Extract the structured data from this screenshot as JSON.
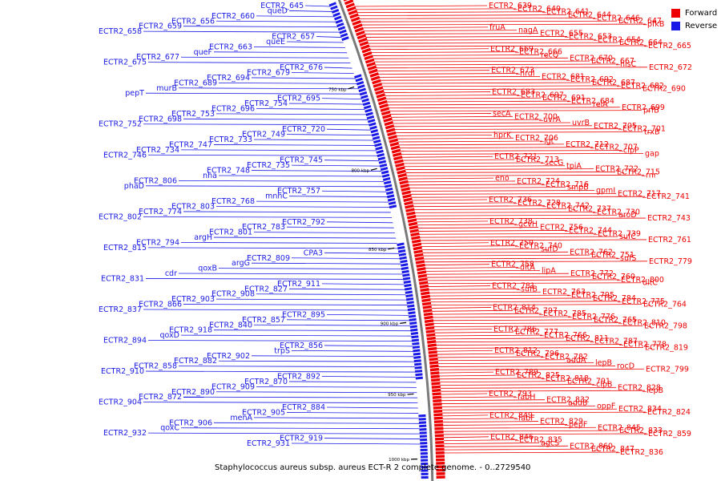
{
  "caption": "Staphylococcus aureus subsp. aureus ECT-R 2 complete genome. - 0..2729540",
  "legend": [
    {
      "label": "Forward",
      "color": "#ee0000"
    },
    {
      "label": "Reverse",
      "color": "#1a1ae6"
    }
  ],
  "colors": {
    "forward": "#ee0000",
    "reverse": "#1a1ae6",
    "backbone": "#7a7a7a"
  },
  "ticks": [
    "750 kbp",
    "800 kbp",
    "850 kbp",
    "900 kbp",
    "950 kbp",
    "1000 kbp"
  ],
  "forward_labels": [
    "ECTR2_639",
    "ECTR2_640",
    "ECTR2_641",
    "ECTR2_644",
    "ECTR2_646",
    "ECTR2_647",
    "pfkB",
    "fruA",
    "nagA",
    "ECTR2_655",
    "ECTR2_653",
    "ECTR2_654",
    "ECTR2_664",
    "ECTR2_665",
    "ECTR2_669",
    "ECTR2_666",
    "recQ",
    "ECTR2_670",
    "ECTR2_667",
    "hisC",
    "ECTR2_672",
    "ECTR2_673",
    "nrdI",
    "ECTR2_681",
    "ECTR2_692",
    "ECTR2_687",
    "ECTR2_682",
    "ECTR2_690",
    "ECTR2_683",
    "ECTR2_697",
    "ECTR2_691",
    "ECTR2_684",
    "relA",
    "ECTR2_699",
    "prfB",
    "secA",
    "ECTR2_700",
    "uvrA",
    "uvrB",
    "ECTR2_705",
    "ECTR2_701",
    "trxB",
    "hprK",
    "ECTR2_706",
    "lgt",
    "ECTR2_712",
    "ECTR2_707",
    "clpP",
    "gap",
    "ECTR2_721",
    "ECTR2_713",
    "secG",
    "tpiA",
    "ECTR2_722",
    "ECTR2_715",
    "rnr",
    "eno",
    "ECTR2_724",
    "ECTR2_716",
    "smpB",
    "gpmI",
    "ECTR2_717",
    "ECTR2_741",
    "ECTR2_736",
    "ECTR2_728",
    "ECTR2_742",
    "ECTR2_737",
    "ECTR2_730",
    "aroD",
    "ECTR2_743",
    "ECTR2_738",
    "gcvH",
    "ECTR2_756",
    "ECTR2_744",
    "ECTR2_739",
    "sufC",
    "ECTR2_761",
    "ECTR2_750",
    "ECTR2_740",
    "sufD",
    "ECTR2_762",
    "ECTR2_751",
    "sufS",
    "ECTR2_779",
    "ECTR2_758",
    "dltA",
    "lipA",
    "ECTR2_772",
    "ECTR2_760",
    "ECTR2_800",
    "dltC",
    "ECTR2_781",
    "sufB",
    "ECTR2_763",
    "ECTR2_795",
    "ECTR2_784",
    "ECTR2_775",
    "ECTR2_764",
    "ECTR2_814",
    "ECTR2_797",
    "ECTR2_785",
    "ECTR2_776",
    "ECTR2_765",
    "ECTR2_810",
    "ECTR2_798",
    "ECTR2_786",
    "ECTR2_777",
    "ECTR2_766",
    "ECTR2_811",
    "ECTR2_787",
    "ECTR2_778",
    "ECTR2_819",
    "ECTR2_812",
    "ECTR2_796",
    "ECTR2_782",
    "addA",
    "lepB",
    "rocD",
    "ECTR2_799",
    "ECTR2_789",
    "ECTR2_825",
    "ECTR2_818",
    "ECTR2_791",
    "clpB",
    "ECTR2_828",
    "lepB",
    "ECTR2_793",
    "fabH",
    "ECTR2_832",
    "addB",
    "oppF",
    "ECTR2_834",
    "ECTR2_824",
    "ECTR2_849",
    "fabF",
    "ECTR2_829",
    "pepF",
    "ECTR2_845",
    "ECTR2_833",
    "ECTR2_859",
    "ECTR2_846",
    "ECTR2_835",
    "agcS",
    "ECTR2_860",
    "ECTR2_847",
    "ECTR2_836"
  ],
  "reverse_labels": [
    "ECTR2_645",
    "queD",
    "ECTR2_660",
    "ECTR2_656",
    "ECTR2_659",
    "ECTR2_658",
    "ECTR2_657",
    "queE",
    "ECTR2_663",
    "queF",
    "ECTR2_677",
    "ECTR2_675",
    "ECTR2_676",
    "ECTR2_679",
    "ECTR2_694",
    "ECTR2_689",
    "murB",
    "pepT",
    "ECTR2_695",
    "ECTR2_754",
    "ECTR2_696",
    "ECTR2_753",
    "ECTR2_698",
    "ECTR2_752",
    "ECTR2_720",
    "ECTR2_749",
    "ECTR2_733",
    "ECTR2_747",
    "ECTR2_734",
    "ECTR2_746",
    "ECTR2_745",
    "ECTR2_735",
    "ECTR2_748",
    "nha",
    "ECTR2_806",
    "phaD",
    "ECTR2_757",
    "mnhC",
    "ECTR2_768",
    "ECTR2_803",
    "ECTR2_774",
    "ECTR2_802",
    "ECTR2_792",
    "ECTR2_783",
    "ECTR2_801",
    "argH",
    "ECTR2_794",
    "ECTR2_815",
    "CPA3",
    "ECTR2_809",
    "argG",
    "qoxB",
    "cdr",
    "ECTR2_831",
    "ECTR2_911",
    "ECTR2_827",
    "ECTR2_908",
    "ECTR2_903",
    "ECTR2_866",
    "ECTR2_837",
    "ECTR2_895",
    "ECTR2_857",
    "ECTR2_840",
    "ECTR2_918",
    "qoxD",
    "ECTR2_894",
    "ECTR2_856",
    "trpS",
    "ECTR2_902",
    "ECTR2_882",
    "ECTR2_858",
    "ECTR2_910",
    "ECTR2_892",
    "ECTR2_870",
    "ECTR2_909",
    "ECTR2_890",
    "ECTR2_872",
    "ECTR2_904",
    "ECTR2_884",
    "ECTR2_905",
    "menA",
    "ECTR2_906",
    "qoxC",
    "ECTR2_932",
    "ECTR2_919",
    "ECTR2_931"
  ]
}
